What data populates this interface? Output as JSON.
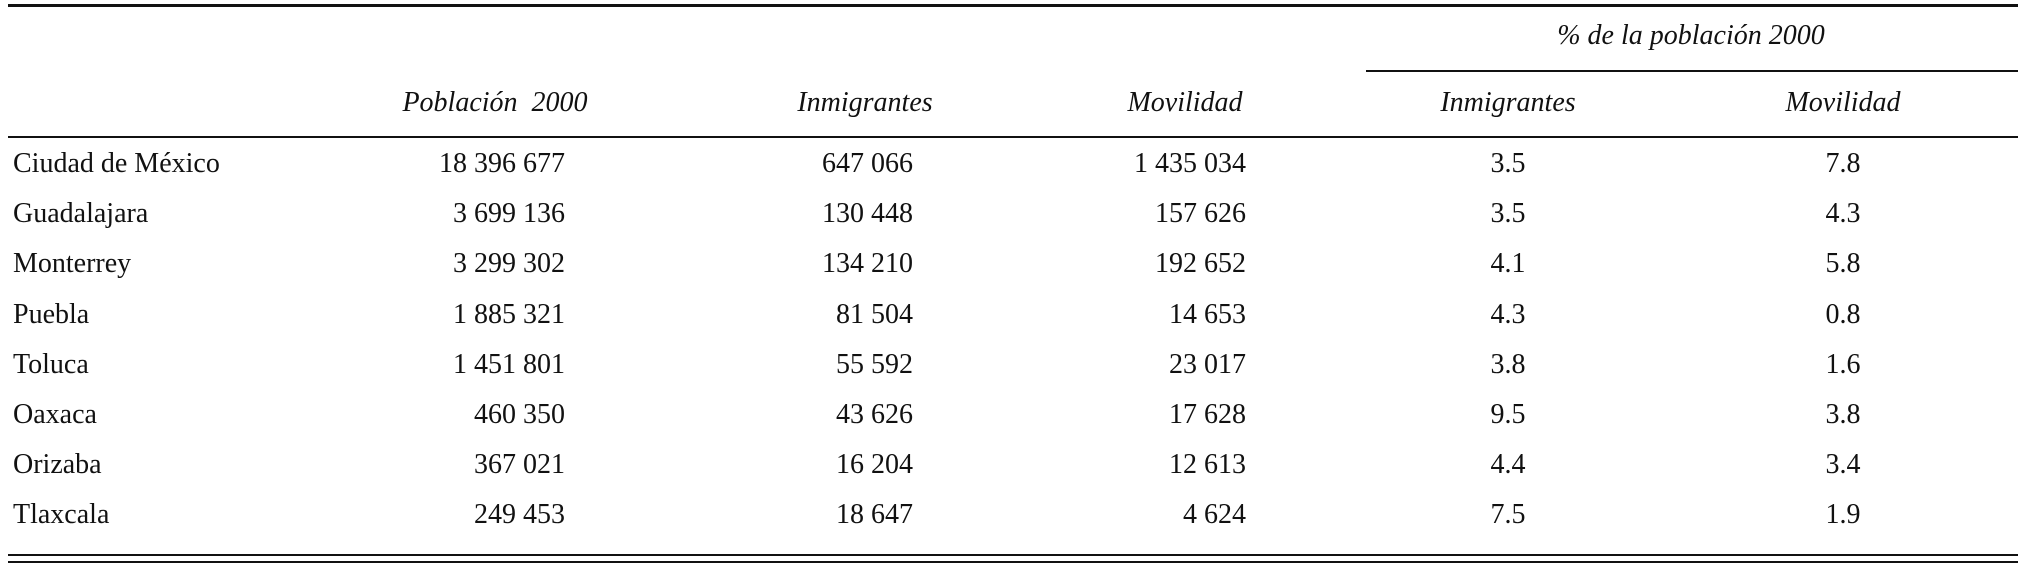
{
  "table": {
    "group_header": "% de la población 2000",
    "columns": [
      "Población  2000",
      "Inmigrantes",
      "Movilidad",
      "Inmigrantes",
      "Movilidad"
    ],
    "rows": [
      [
        "Ciudad de México",
        "18 396 677",
        "647 066",
        "1 435 034",
        "3.5",
        "7.8"
      ],
      [
        "Guadalajara",
        "3 699 136",
        "130 448",
        "157 626",
        "3.5",
        "4.3"
      ],
      [
        "Monterrey",
        "3 299 302",
        "134 210",
        "192 652",
        "4.1",
        "5.8"
      ],
      [
        "Puebla",
        "1 885 321",
        "81 504",
        "14 653",
        "4.3",
        "0.8"
      ],
      [
        "Toluca",
        "1 451 801",
        "55 592",
        "23 017",
        "3.8",
        "1.6"
      ],
      [
        "Oaxaca",
        "460 350",
        "43 626",
        "17 628",
        "9.5",
        "3.8"
      ],
      [
        "Orizaba",
        "367 021",
        "16 204",
        "12 613",
        "4.4",
        "3.4"
      ],
      [
        "Tlaxcala",
        "249 453",
        "18 647",
        "4 624",
        "7.5",
        "1.9"
      ]
    ]
  }
}
